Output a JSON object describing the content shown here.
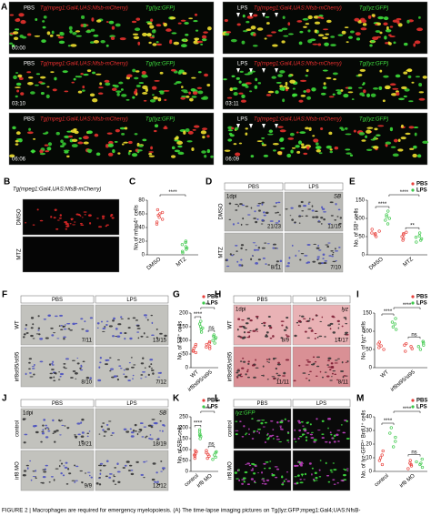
{
  "panel_a": {
    "label": "A",
    "transgene_red": "Tg(mpeg1:Gal4,UAS:Nfsb-mCherry)",
    "transgene_green": "Tg(lyz:GFP)",
    "columns": [
      {
        "condition": "PBS",
        "times": [
          "00:00",
          "03:10",
          "06:06"
        ]
      },
      {
        "condition": "LPS",
        "times": [
          "03:11",
          "06:09"
        ]
      }
    ]
  },
  "image_panels": [
    {
      "label": "B",
      "title": "Tg(mpeg1:Gal4,UAS:NfsB-mCherry)",
      "rows": [
        "DMSO",
        "MTZ"
      ]
    },
    {
      "label": "D",
      "columns": [
        "PBS",
        "LPS"
      ],
      "rows": [
        "DMSO",
        "MTZ"
      ],
      "stage": "1dpi",
      "stain": "SB",
      "ratios": [
        "21/23",
        "11/15",
        "8/11",
        "7/10"
      ]
    },
    {
      "label": "F",
      "columns": [
        "PBS",
        "LPS"
      ],
      "rows": [
        "WT",
        "irf8st95/st95"
      ],
      "ratios": [
        "7/11",
        "13/15",
        "8/10",
        "7/12"
      ]
    },
    {
      "label": "H",
      "columns": [
        "PBS",
        "LPS"
      ],
      "rows": [
        "WT",
        "irf8st95/st95"
      ],
      "stage": "1dpi",
      "stain": "lyz",
      "ratios": [
        "8/9",
        "14/17",
        "11/11",
        "8/11"
      ]
    },
    {
      "label": "J",
      "columns": [
        "PBS",
        "LPS"
      ],
      "rows": [
        "control",
        "irf8 MO"
      ],
      "stage": "1dpi",
      "stain": "SB",
      "ratios": [
        "19/21",
        "18/19",
        "9/9",
        "12/12"
      ]
    },
    {
      "label": "L",
      "columns": [
        "PBS",
        "LPS"
      ],
      "rows": [
        "control",
        "irf8 MO"
      ],
      "stain": "lyz:GFP"
    }
  ],
  "chart_data": [
    {
      "type": "strip",
      "label": "C",
      "y_label": "No.of mfap4⁺ cells",
      "categories": [
        "DMSO",
        "MTZ"
      ],
      "colors": [
        "#e8413c",
        "#3cc84a"
      ],
      "values": [
        [
          48,
          52,
          55,
          58,
          62,
          66,
          45,
          60
        ],
        [
          5,
          8,
          10,
          12,
          15,
          18,
          3,
          20
        ]
      ],
      "ylim": [
        0,
        80
      ],
      "yticks": [
        0,
        20,
        40,
        60,
        80
      ],
      "significance": [
        "****"
      ]
    },
    {
      "type": "strip",
      "label": "E",
      "y_label": "No. of SB⁺ cells",
      "categories": [
        "DMSO",
        "MTZ"
      ],
      "series": [
        {
          "name": "PBS",
          "color": "#e8413c",
          "values": [
            [
              50,
              55,
              60,
              65,
              70,
              58
            ],
            [
              45,
              50,
              55,
              62,
              40,
              58
            ]
          ]
        },
        {
          "name": "LPS",
          "color": "#3cc84a",
          "values": [
            [
              85,
              95,
              100,
              110,
              120,
              105
            ],
            [
              35,
              40,
              48,
              52,
              60,
              44
            ]
          ]
        }
      ],
      "ylim": [
        0,
        150
      ],
      "yticks": [
        0,
        50,
        100,
        150
      ],
      "significance": [
        "****",
        "**",
        "****"
      ]
    },
    {
      "type": "strip",
      "label": "G",
      "y_label": "No. of SB⁺ cells",
      "categories": [
        "WT",
        "irf8st95/st95"
      ],
      "series": [
        {
          "name": "PBS",
          "color": "#e8413c",
          "values": [
            [
              55,
              62,
              70,
              78,
              85,
              60
            ],
            [
              70,
              78,
              85,
              90,
              95,
              75
            ]
          ]
        },
        {
          "name": "LPS",
          "color": "#3cc84a",
          "values": [
            [
              130,
              140,
              150,
              160,
              170,
              145
            ],
            [
              90,
              100,
              110,
              115,
              120,
              105
            ]
          ]
        }
      ],
      "ylim": [
        0,
        200
      ],
      "yticks": [
        0,
        50,
        100,
        150,
        200
      ],
      "significance": [
        "****",
        "ns",
        "**"
      ]
    },
    {
      "type": "strip",
      "label": "I",
      "y_label": "No. of lyz⁺ cells",
      "categories": [
        "WT",
        "irf8st95/st95"
      ],
      "series": [
        {
          "name": "PBS",
          "color": "#e8413c",
          "values": [
            [
              50,
              55,
              60,
              65,
              70
            ],
            [
              45,
              52,
              58,
              62,
              66
            ]
          ]
        },
        {
          "name": "LPS",
          "color": "#3cc84a",
          "values": [
            [
              105,
              112,
              120,
              125,
              135
            ],
            [
              50,
              58,
              62,
              68,
              72
            ]
          ]
        }
      ],
      "ylim": [
        0,
        150
      ],
      "yticks": [
        0,
        50,
        100,
        150
      ],
      "significance": [
        "****",
        "ns",
        "****"
      ]
    },
    {
      "type": "strip",
      "label": "K",
      "y_label": "No. of SB⁺ cells",
      "categories": [
        "control",
        "irf8 MO"
      ],
      "series": [
        {
          "name": "PBS",
          "color": "#e8413c",
          "values": [
            [
              60,
              70,
              80,
              90,
              95,
              75
            ],
            [
              60,
              70,
              78,
              85,
              95
            ]
          ]
        },
        {
          "name": "LPS",
          "color": "#3cc84a",
          "values": [
            [
              150,
              160,
              170,
              180,
              190,
              165
            ],
            [
              55,
              65,
              75,
              85,
              90
            ]
          ]
        }
      ],
      "ylim": [
        0,
        250
      ],
      "yticks": [
        0,
        50,
        100,
        150,
        200,
        250
      ],
      "significance": [
        "****",
        "ns",
        "****"
      ]
    },
    {
      "type": "strip",
      "label": "M",
      "y_label": "No. of lyz-GFP⁺ BrdU⁺ cells",
      "categories": [
        "control",
        "irf8 MO"
      ],
      "series": [
        {
          "name": "PBS",
          "color": "#e8413c",
          "values": [
            [
              5,
              8,
              10,
              12,
              15
            ],
            [
              2,
              4,
              5,
              6,
              8
            ]
          ]
        },
        {
          "name": "LPS",
          "color": "#3cc84a",
          "values": [
            [
              18,
              22,
              25,
              28,
              32
            ],
            [
              3,
              5,
              6,
              7,
              9
            ]
          ]
        }
      ],
      "ylim": [
        0,
        40
      ],
      "yticks": [
        0,
        10,
        20,
        30,
        40
      ],
      "significance": [
        "****",
        "ns",
        "****"
      ]
    }
  ],
  "caption": "FIGURE 2 | Macrophages are required for emergency myelopoiesis. (A) The time-lapse imaging pictures on Tg(lyz:GFP;mpeg1:Gal4;UAS:NfsB-"
}
